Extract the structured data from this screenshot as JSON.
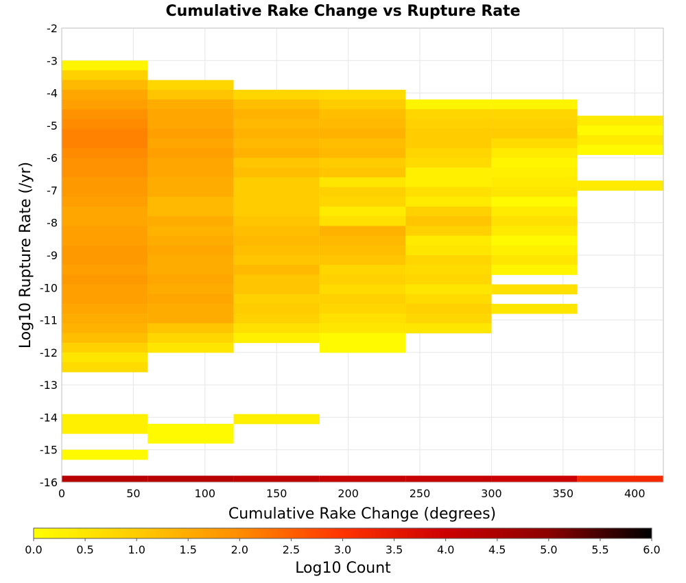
{
  "chart_data": {
    "type": "heatmap",
    "title": "Cumulative Rake Change vs Rupture Rate",
    "xlabel": "Cumulative Rake Change (degrees)",
    "ylabel": "Log10 Rupture Rate (/yr)",
    "xlim": [
      0,
      420
    ],
    "ylim": [
      -16,
      -2
    ],
    "xticks": [
      0,
      50,
      100,
      150,
      200,
      250,
      300,
      350,
      400
    ],
    "yticks": [
      -2,
      -3,
      -4,
      -5,
      -6,
      -7,
      -8,
      -9,
      -10,
      -11,
      -12,
      -13,
      -14,
      -15,
      -16
    ],
    "grid": true,
    "colorbar": {
      "label": "Log10 Count",
      "range": [
        0,
        6
      ],
      "ticks": [
        0.0,
        0.5,
        1.0,
        1.5,
        2.0,
        2.5,
        3.0,
        3.5,
        4.0,
        4.5,
        5.0,
        5.5,
        6.0
      ],
      "tick_labels": [
        "0.0",
        "0.5",
        "1.0",
        "1.5",
        "2.0",
        "2.5",
        "3.0",
        "3.5",
        "4.0",
        "4.5",
        "5.0",
        "5.5",
        "6.0"
      ],
      "colors": [
        "#ffff00",
        "#ffcc00",
        "#ff8c00",
        "#ff3300",
        "#cc0000",
        "#8b0000",
        "#000000"
      ]
    },
    "x_bins": [
      0,
      60,
      120,
      180,
      240,
      300,
      360,
      420
    ],
    "y_bin_width": 0.3,
    "columns": [
      {
        "x0": 0,
        "x1": 60,
        "y_top": -3.0,
        "values": [
          0.2,
          0.9,
          1.3,
          1.6,
          1.7,
          1.9,
          2.0,
          2.1,
          2.1,
          2.0,
          1.9,
          1.9,
          1.8,
          1.8,
          1.7,
          1.6,
          1.6,
          1.7,
          1.7,
          1.8,
          1.8,
          1.7,
          1.8,
          1.7,
          1.7,
          1.6,
          1.5,
          1.4,
          1.2,
          0.9,
          0.5,
          0.7
        ]
      },
      {
        "x0": 0,
        "x1": 60,
        "y_top": -13.9,
        "values": [
          0.3,
          0.3
        ]
      },
      {
        "x0": 0,
        "x1": 60,
        "y_top": -15.0,
        "values": [
          0.1
        ]
      },
      {
        "x0": 60,
        "x1": 120,
        "y_top": -3.6,
        "values": [
          0.8,
          1.1,
          1.5,
          1.6,
          1.6,
          1.7,
          1.6,
          1.7,
          1.6,
          1.6,
          1.5,
          1.5,
          1.3,
          1.3,
          1.5,
          1.4,
          1.5,
          1.6,
          1.5,
          1.5,
          1.6,
          1.5,
          1.6,
          1.5,
          1.5,
          1.1,
          0.8,
          0.5
        ]
      },
      {
        "x0": 60,
        "x1": 120,
        "y_top": -14.2,
        "values": [
          0.1,
          0.1
        ]
      },
      {
        "x0": 120,
        "x1": 180,
        "y_top": -3.9,
        "values": [
          0.8,
          1.2,
          1.4,
          1.3,
          1.4,
          1.3,
          1.4,
          1.1,
          1.2,
          1.0,
          1.0,
          1.0,
          1.0,
          1.1,
          1.2,
          1.3,
          1.2,
          1.1,
          1.3,
          1.1,
          1.1,
          0.9,
          1.0,
          0.9,
          0.6,
          0.3
        ]
      },
      {
        "x0": 120,
        "x1": 180,
        "y_top": -13.9,
        "values": [
          0.3
        ]
      },
      {
        "x0": 180,
        "x1": 240,
        "y_top": -3.9,
        "values": [
          0.7,
          1.0,
          1.2,
          1.3,
          1.4,
          1.2,
          1.3,
          1.0,
          1.1,
          0.5,
          0.9,
          0.8,
          0.4,
          0.6,
          1.4,
          1.3,
          1.2,
          1.1,
          0.8,
          0.9,
          0.7,
          0.9,
          0.8,
          0.6,
          0.5,
          0.1,
          0.1
        ]
      },
      {
        "x0": 240,
        "x1": 300,
        "y_top": -4.2,
        "values": [
          0.2,
          0.8,
          0.9,
          1.0,
          1.0,
          0.8,
          0.7,
          0.3,
          0.3,
          0.6,
          0.4,
          0.9,
          1.1,
          0.9,
          0.4,
          0.5,
          0.8,
          0.7,
          0.8,
          0.5,
          0.7,
          0.9,
          0.8,
          0.5
        ]
      },
      {
        "x0": 300,
        "x1": 360,
        "y_top": -4.2,
        "values": [
          0.2,
          0.8,
          0.9,
          1.0,
          0.7,
          0.4,
          0.2,
          0.3,
          0.4,
          0.5,
          0.1,
          0.4,
          0.6,
          0.4,
          0.1,
          0.3,
          0.6
        ]
      },
      {
        "x0": 300,
        "x1": 360,
        "y_top": -9.0,
        "values": [
          0.5,
          0.2
        ]
      },
      {
        "x0": 300,
        "x1": 360,
        "y_top": -9.9,
        "values": [
          0.6
        ]
      },
      {
        "x0": 300,
        "x1": 360,
        "y_top": -10.5,
        "values": [
          0.5
        ]
      },
      {
        "x0": 360,
        "x1": 420,
        "y_top": -4.7,
        "values": [
          0.4,
          0.1,
          0.4,
          0.1
        ]
      },
      {
        "x0": 360,
        "x1": 420,
        "y_top": -6.7,
        "values": [
          0.4
        ]
      }
    ],
    "bottom_row": {
      "y_top": -15.8,
      "y_bottom": -16.0,
      "cells": [
        {
          "x0": 0,
          "x1": 60,
          "value": 4.3
        },
        {
          "x0": 60,
          "x1": 120,
          "value": 4.3
        },
        {
          "x0": 120,
          "x1": 180,
          "value": 4.2
        },
        {
          "x0": 180,
          "x1": 240,
          "value": 4.1
        },
        {
          "x0": 240,
          "x1": 300,
          "value": 4.1
        },
        {
          "x0": 300,
          "x1": 360,
          "value": 4.0
        },
        {
          "x0": 360,
          "x1": 420,
          "value": 3.2
        }
      ]
    }
  }
}
